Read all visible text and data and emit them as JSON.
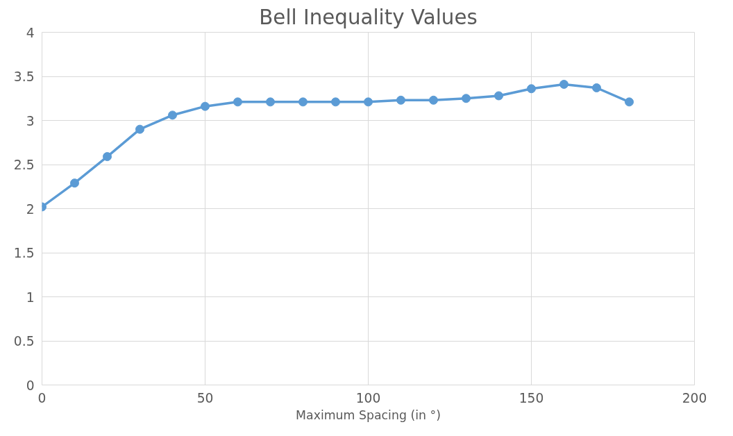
{
  "chart_data": {
    "type": "line",
    "title": "Bell Inequality Values",
    "xlabel": "Maximum Spacing (in °)",
    "x": [
      0,
      10,
      20,
      30,
      40,
      50,
      60,
      70,
      80,
      90,
      100,
      110,
      120,
      130,
      140,
      150,
      160,
      170,
      180
    ],
    "series": [
      {
        "color": "#5b9bd5",
        "values": [
          2.02,
          2.29,
          2.59,
          2.9,
          3.06,
          3.16,
          3.21,
          3.21,
          3.21,
          3.21,
          3.21,
          3.23,
          3.23,
          3.25,
          3.28,
          3.36,
          3.41,
          3.37,
          3.21
        ]
      }
    ],
    "xlim": [
      0,
      200
    ],
    "xticks": [
      0,
      50,
      100,
      150,
      200
    ],
    "ylim": [
      0,
      4
    ],
    "yticks": [
      0,
      0.5,
      1,
      1.5,
      2,
      2.5,
      3,
      3.5,
      4
    ],
    "grid": true,
    "marker": "circle",
    "line_style": "solid"
  }
}
